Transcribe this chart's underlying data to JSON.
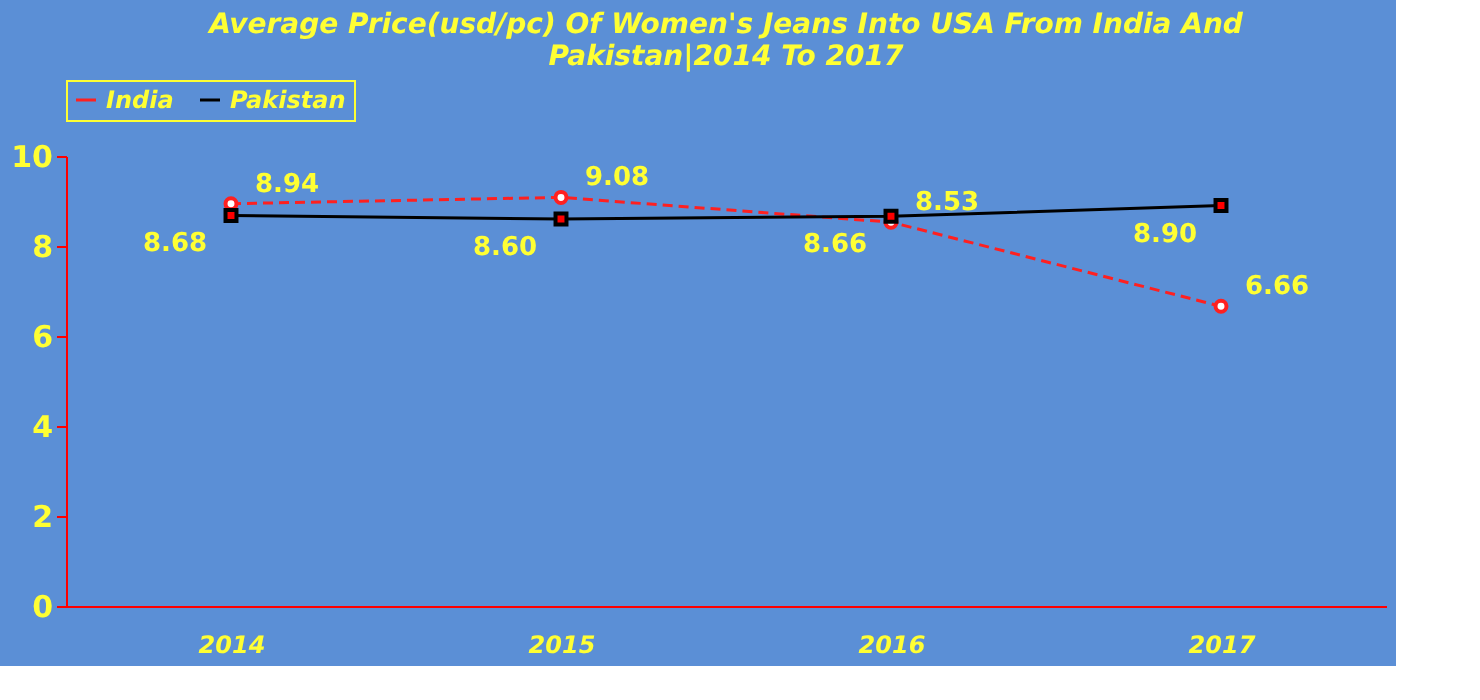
{
  "chart_data": {
    "type": "line",
    "title": "Average Price(usd/pc) Of Women's Jeans Into USA From India And Pakistan|2014 To 2017",
    "categories": [
      "2014",
      "2015",
      "2016",
      "2017"
    ],
    "series": [
      {
        "name": "India",
        "color": "#ff2020",
        "values": [
          8.94,
          9.08,
          8.53,
          6.66
        ],
        "value_labels": [
          "8.94",
          "9.08",
          "8.53",
          "6.66"
        ],
        "marker": "circle",
        "line_style": "dashed"
      },
      {
        "name": "Pakistan",
        "color": "#000000",
        "values": [
          8.68,
          8.6,
          8.66,
          8.9
        ],
        "value_labels": [
          "8.68",
          "8.60",
          "8.66",
          "8.90"
        ],
        "marker": "square",
        "line_style": "solid"
      }
    ],
    "ylim": [
      0,
      10
    ],
    "yticks": [
      0,
      2,
      4,
      6,
      8,
      10
    ],
    "grid": false,
    "legend": "top"
  }
}
